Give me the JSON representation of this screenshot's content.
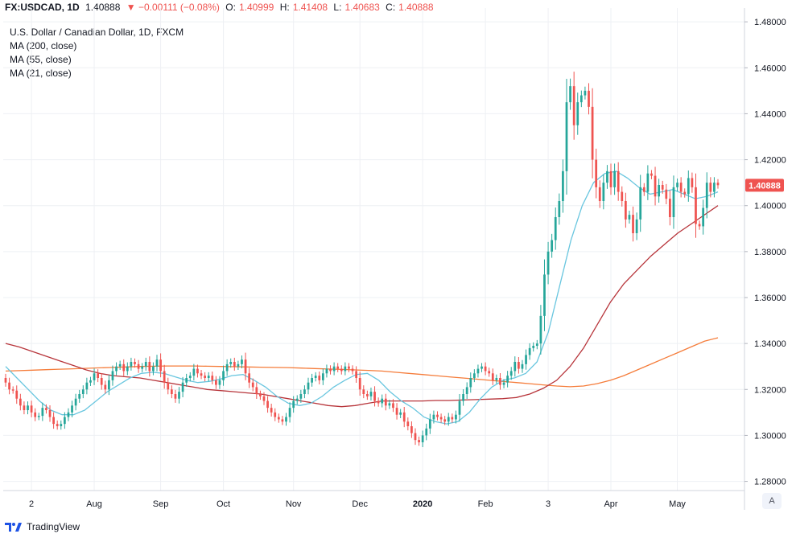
{
  "header": {
    "symbol": "FX:USDCAD, 1D",
    "last": "1.40888",
    "change": "▼ −0.00111 (−0.08%)",
    "open_label": "O:",
    "open": "1.40999",
    "high_label": "H:",
    "high": "1.41408",
    "low_label": "L:",
    "low": "1.40683",
    "close_label": "C:",
    "close": "1.40888"
  },
  "legend": {
    "title": "U.S. Dollar / Canadian Dollar, 1D, FXCM",
    "ma200": "MA (200, close)",
    "ma55": "MA (55, close)",
    "ma21": "MA (21, close)"
  },
  "branding": "TradingView",
  "axis_button": "A",
  "colors": {
    "up": "#26a69a",
    "down": "#ef5350",
    "ma200": "#f57c3a",
    "ma55": "#b7343a",
    "ma21": "#69c6df",
    "grid": "#eef0f4",
    "price_label_bg": "#ef5350"
  },
  "chart_data": {
    "type": "candlestick",
    "title": "U.S. Dollar / Canadian Dollar, 1D, FXCM",
    "ylim": [
      1.276,
      1.486
    ],
    "y_ticks": [
      "1.48000",
      "1.46000",
      "1.44000",
      "1.42000",
      "1.40000",
      "1.38000",
      "1.36000",
      "1.34000",
      "1.32000",
      "1.30000",
      "1.28000"
    ],
    "x_labels": [
      "2",
      "Aug",
      "Sep",
      "Oct",
      "Nov",
      "Dec",
      "2020",
      "Feb",
      "3",
      "Apr",
      "May"
    ],
    "x_label_idx": [
      7,
      24,
      42,
      59,
      78,
      96,
      113,
      130,
      147,
      164,
      182
    ],
    "last_price_label": "1.40888",
    "last_price": 1.40888,
    "grid": true,
    "close": [
      1.323,
      1.32,
      1.3195,
      1.316,
      1.313,
      1.311,
      1.313,
      1.31,
      1.308,
      1.3085,
      1.312,
      1.311,
      1.308,
      1.305,
      1.304,
      1.305,
      1.308,
      1.31,
      1.313,
      1.316,
      1.318,
      1.32,
      1.323,
      1.324,
      1.327,
      1.325,
      1.322,
      1.32,
      1.324,
      1.328,
      1.33,
      1.331,
      1.328,
      1.33,
      1.332,
      1.331,
      1.329,
      1.33,
      1.332,
      1.328,
      1.33,
      1.333,
      1.328,
      1.323,
      1.32,
      1.318,
      1.316,
      1.319,
      1.323,
      1.325,
      1.326,
      1.329,
      1.327,
      1.326,
      1.325,
      1.326,
      1.324,
      1.322,
      1.324,
      1.328,
      1.331,
      1.332,
      1.33,
      1.331,
      1.333,
      1.327,
      1.323,
      1.321,
      1.318,
      1.317,
      1.315,
      1.312,
      1.31,
      1.308,
      1.307,
      1.306,
      1.308,
      1.312,
      1.315,
      1.316,
      1.318,
      1.32,
      1.323,
      1.325,
      1.326,
      1.324,
      1.327,
      1.329,
      1.328,
      1.33,
      1.329,
      1.328,
      1.33,
      1.329,
      1.328,
      1.325,
      1.32,
      1.318,
      1.317,
      1.319,
      1.315,
      1.314,
      1.316,
      1.313,
      1.314,
      1.312,
      1.309,
      1.31,
      1.306,
      1.304,
      1.301,
      1.298,
      1.297,
      1.3,
      1.303,
      1.307,
      1.309,
      1.308,
      1.307,
      1.306,
      1.308,
      1.307,
      1.309,
      1.315,
      1.318,
      1.321,
      1.325,
      1.327,
      1.329,
      1.33,
      1.328,
      1.327,
      1.324,
      1.325,
      1.322,
      1.323,
      1.326,
      1.328,
      1.332,
      1.329,
      1.331,
      1.335,
      1.338,
      1.339,
      1.34,
      1.352,
      1.37,
      1.38,
      1.385,
      1.395,
      1.402,
      1.415,
      1.445,
      1.452,
      1.435,
      1.445,
      1.448,
      1.45,
      1.443,
      1.42,
      1.408,
      1.402,
      1.41,
      1.415,
      1.408,
      1.415,
      1.406,
      1.402,
      1.394,
      1.396,
      1.388,
      1.394,
      1.408,
      1.406,
      1.414,
      1.413,
      1.404,
      1.409,
      1.407,
      1.403,
      1.395,
      1.408,
      1.41,
      1.406,
      1.405,
      1.412,
      1.408,
      1.392,
      1.391,
      1.399,
      1.41,
      1.406,
      1.41,
      1.4089
    ],
    "series": [
      {
        "name": "MA (200, close)",
        "values": [
          1.328,
          1.3282,
          1.3284,
          1.3286,
          1.3288,
          1.329,
          1.3292,
          1.3294,
          1.3296,
          1.3298,
          1.33,
          1.3301,
          1.3302,
          1.3302,
          1.3302,
          1.3301,
          1.33,
          1.3299,
          1.3298,
          1.3297,
          1.3296,
          1.3295,
          1.3293,
          1.3291,
          1.3289,
          1.3287,
          1.3285,
          1.3283,
          1.328,
          1.3275,
          1.327,
          1.3265,
          1.326,
          1.3255,
          1.325,
          1.3245,
          1.324,
          1.3235,
          1.323,
          1.3225,
          1.322,
          1.3215,
          1.3212,
          1.3215,
          1.3225,
          1.324,
          1.326,
          1.3285,
          1.331,
          1.3335,
          1.336,
          1.3385,
          1.341,
          1.3425
        ]
      },
      {
        "name": "MA (55, close)",
        "values": [
          1.34,
          1.3385,
          1.3365,
          1.3345,
          1.3325,
          1.3305,
          1.3285,
          1.327,
          1.326,
          1.3255,
          1.325,
          1.324,
          1.323,
          1.322,
          1.321,
          1.32,
          1.3195,
          1.319,
          1.3185,
          1.318,
          1.317,
          1.316,
          1.315,
          1.314,
          1.313,
          1.3125,
          1.313,
          1.314,
          1.315,
          1.315,
          1.315,
          1.315,
          1.3152,
          1.3152,
          1.3154,
          1.3156,
          1.3158,
          1.316,
          1.3165,
          1.318,
          1.3205,
          1.324,
          1.33,
          1.338,
          1.348,
          1.358,
          1.366,
          1.372,
          1.378,
          1.383,
          1.388,
          1.392,
          1.396,
          1.4
        ]
      },
      {
        "name": "MA (21, close)",
        "values": [
          1.33,
          1.325,
          1.32,
          1.315,
          1.311,
          1.309,
          1.309,
          1.311,
          1.315,
          1.319,
          1.322,
          1.325,
          1.327,
          1.3275,
          1.327,
          1.3255,
          1.324,
          1.323,
          1.3235,
          1.3245,
          1.326,
          1.3265,
          1.324,
          1.321,
          1.317,
          1.314,
          1.313,
          1.314,
          1.317,
          1.321,
          1.324,
          1.3265,
          1.327,
          1.324,
          1.319,
          1.315,
          1.312,
          1.308,
          1.306,
          1.305,
          1.306,
          1.31,
          1.316,
          1.321,
          1.324,
          1.325,
          1.327,
          1.332,
          1.345,
          1.365,
          1.385,
          1.4,
          1.41,
          1.414,
          1.415,
          1.412,
          1.408,
          1.405,
          1.406,
          1.407,
          1.405,
          1.403,
          1.404,
          1.406
        ]
      }
    ]
  }
}
